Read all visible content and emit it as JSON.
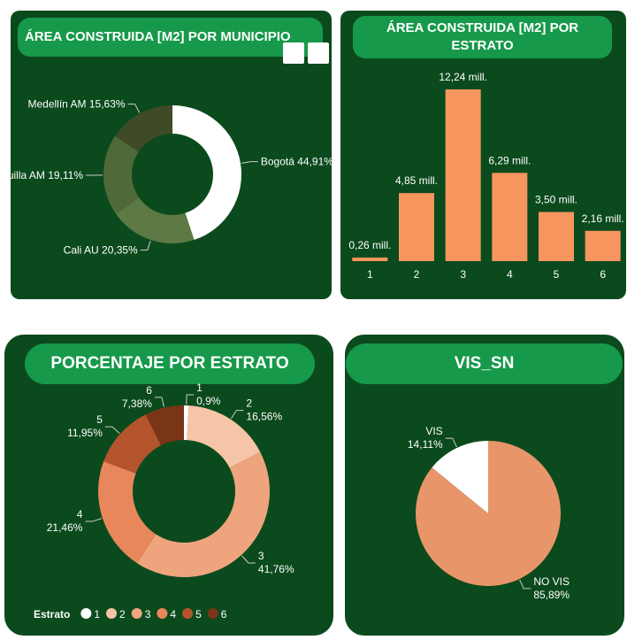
{
  "chart_data": [
    {
      "type": "donut",
      "title": "ÁREA CONSTRUIDA [M2] POR MUNICIPIO",
      "categories": [
        "Bogotá",
        "Cali AU",
        "Barranquilla AM",
        "Medellín AM"
      ],
      "values": [
        44.91,
        20.35,
        19.11,
        15.63
      ],
      "value_labels": [
        "44,91%",
        "20,35%",
        "19,11%",
        "15,63%"
      ],
      "colors": [
        "#ffffff",
        "#5d7a45",
        "#4f6a38",
        "#3f4b27"
      ]
    },
    {
      "type": "bar",
      "title": "ÁREA CONSTRUIDA [M2] POR ESTRATO",
      "categories": [
        "1",
        "2",
        "3",
        "4",
        "5",
        "6"
      ],
      "values": [
        0.26,
        4.85,
        12.24,
        6.29,
        3.5,
        2.16
      ],
      "value_labels": [
        "0,26 mill.",
        "4,85 mill.",
        "12,24 mill.",
        "6,29 mill.",
        "3,50 mill.",
        "2,16 mill."
      ],
      "color": "#f7955f"
    },
    {
      "type": "donut",
      "title": "PORCENTAJE POR ESTRATO",
      "categories": [
        "1",
        "2",
        "3",
        "4",
        "5",
        "6"
      ],
      "values": [
        0.9,
        16.56,
        41.76,
        21.46,
        11.95,
        7.38
      ],
      "value_labels": [
        "0,9%",
        "16,56%",
        "41,76%",
        "21,46%",
        "11,95%",
        "7,38%"
      ],
      "colors": [
        "#ffffff",
        "#f6c4a7",
        "#eea57e",
        "#e8875b",
        "#b3542c",
        "#7a3519"
      ],
      "legend_title": "Estrato"
    },
    {
      "type": "pie",
      "title": "VIS_SN",
      "categories": [
        "NO VIS",
        "VIS"
      ],
      "values": [
        85.89,
        14.11
      ],
      "value_labels": [
        "85,89%",
        "14,11%"
      ],
      "colors": [
        "#e8956a",
        "#ffffff"
      ]
    }
  ]
}
